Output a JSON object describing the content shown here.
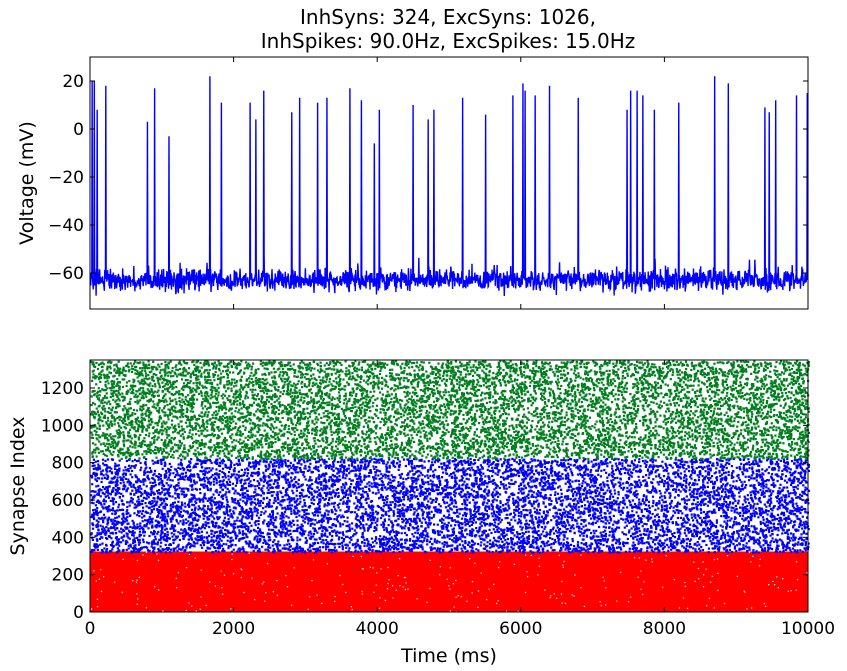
{
  "chart_data": [
    {
      "type": "line",
      "title_lines": [
        "InhSyns: 324, ExcSyns: 1026,",
        "InhSpikes: 90.0Hz, ExcSpikes: 15.0Hz"
      ],
      "xlabel": "",
      "ylabel": "Voltage (mV)",
      "xlim": [
        0,
        10000
      ],
      "ylim": [
        -75,
        30
      ],
      "yticks": [
        20,
        0,
        -20,
        -40,
        -60
      ],
      "ytick_labels": [
        "20",
        "0",
        "−20",
        "−40",
        "−60"
      ],
      "xticks": [
        0,
        2000,
        4000,
        6000,
        8000,
        10000
      ],
      "grid": false,
      "series": [
        {
          "color": "#0000ff",
          "baseline_mv": -63,
          "spikes": [
            {
              "t": 30,
              "v": 20
            },
            {
              "t": 60,
              "v": 20
            },
            {
              "t": 100,
              "v": 8
            },
            {
              "t": 220,
              "v": 18
            },
            {
              "t": 800,
              "v": 3
            },
            {
              "t": 900,
              "v": 17
            },
            {
              "t": 1100,
              "v": -3
            },
            {
              "t": 1670,
              "v": 22
            },
            {
              "t": 1830,
              "v": 11
            },
            {
              "t": 2230,
              "v": 11
            },
            {
              "t": 2310,
              "v": 4
            },
            {
              "t": 2420,
              "v": 16
            },
            {
              "t": 2810,
              "v": 7
            },
            {
              "t": 2920,
              "v": 13
            },
            {
              "t": 3170,
              "v": 11
            },
            {
              "t": 3300,
              "v": 13
            },
            {
              "t": 3620,
              "v": 17
            },
            {
              "t": 3780,
              "v": 12
            },
            {
              "t": 3960,
              "v": -6
            },
            {
              "t": 4030,
              "v": 8
            },
            {
              "t": 4500,
              "v": 10
            },
            {
              "t": 4710,
              "v": 4
            },
            {
              "t": 4790,
              "v": 8
            },
            {
              "t": 5190,
              "v": 13
            },
            {
              "t": 5510,
              "v": 6
            },
            {
              "t": 5890,
              "v": 14
            },
            {
              "t": 6030,
              "v": 19
            },
            {
              "t": 6060,
              "v": 16
            },
            {
              "t": 6200,
              "v": 14
            },
            {
              "t": 6400,
              "v": 18
            },
            {
              "t": 6800,
              "v": 13
            },
            {
              "t": 7480,
              "v": 8
            },
            {
              "t": 7530,
              "v": 16
            },
            {
              "t": 7620,
              "v": 16
            },
            {
              "t": 7700,
              "v": 14
            },
            {
              "t": 7860,
              "v": 8
            },
            {
              "t": 8200,
              "v": 11
            },
            {
              "t": 8700,
              "v": 22
            },
            {
              "t": 8890,
              "v": 19
            },
            {
              "t": 9400,
              "v": 9
            },
            {
              "t": 9460,
              "v": 7
            },
            {
              "t": 9550,
              "v": 12
            },
            {
              "t": 9840,
              "v": 14
            },
            {
              "t": 9990,
              "v": 15
            }
          ]
        }
      ]
    },
    {
      "type": "scatter",
      "xlabel": "Time (ms)",
      "ylabel": "Synapse Index",
      "xlim": [
        0,
        10000
      ],
      "ylim": [
        0,
        1350
      ],
      "yticks": [
        0,
        200,
        400,
        600,
        800,
        1000,
        1200
      ],
      "ytick_labels": [
        "0",
        "200",
        "400",
        "600",
        "800",
        "1000",
        "1200"
      ],
      "xticks": [
        0,
        2000,
        4000,
        6000,
        8000,
        10000
      ],
      "xtick_labels": [
        "0",
        "2000",
        "4000",
        "6000",
        "8000",
        "10000"
      ],
      "grid": false,
      "series": [
        {
          "index_range": [
            0,
            324
          ],
          "color": "#ff0000",
          "rate_hz": 90.0
        },
        {
          "index_range": [
            324,
            826
          ],
          "color": "#0000ff",
          "rate_hz": 15.0
        },
        {
          "index_range": [
            826,
            1350
          ],
          "color": "#007f1f",
          "rate_hz": 15.0
        }
      ]
    }
  ]
}
